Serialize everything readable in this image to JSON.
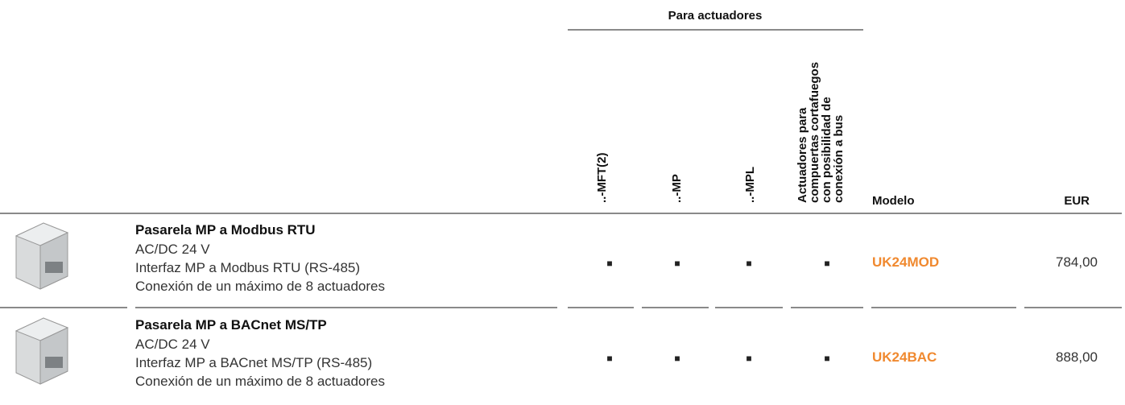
{
  "table": {
    "group_header": "Para actuadores",
    "headers": [
      "..-MFT(2)",
      "..-MP",
      "..-MPL",
      [
        "Actuadores para",
        "compuertas cortafuegos",
        "con posibilidad de",
        "conexión a bus"
      ],
      "Modelo",
      "EUR"
    ],
    "rows": [
      {
        "title": "Pasarela MP a Modbus RTU",
        "lines": [
          "AC/DC 24 V",
          "Interfaz MP a Modbus RTU (RS-485)",
          "Conexión de un máximo de 8 actuadores"
        ],
        "marks": [
          "■",
          "■",
          "■",
          "■"
        ],
        "model": "UK24MOD",
        "price": "784,00"
      },
      {
        "title": "Pasarela MP a BACnet MS/TP",
        "lines": [
          "AC/DC 24 V",
          "Interfaz MP a BACnet MS/TP (RS-485)",
          "Conexión de un máximo de 8 actuadores"
        ],
        "marks": [
          "■",
          "■",
          "■",
          "■"
        ],
        "model": "UK24BAC",
        "price": "888,00"
      }
    ]
  }
}
